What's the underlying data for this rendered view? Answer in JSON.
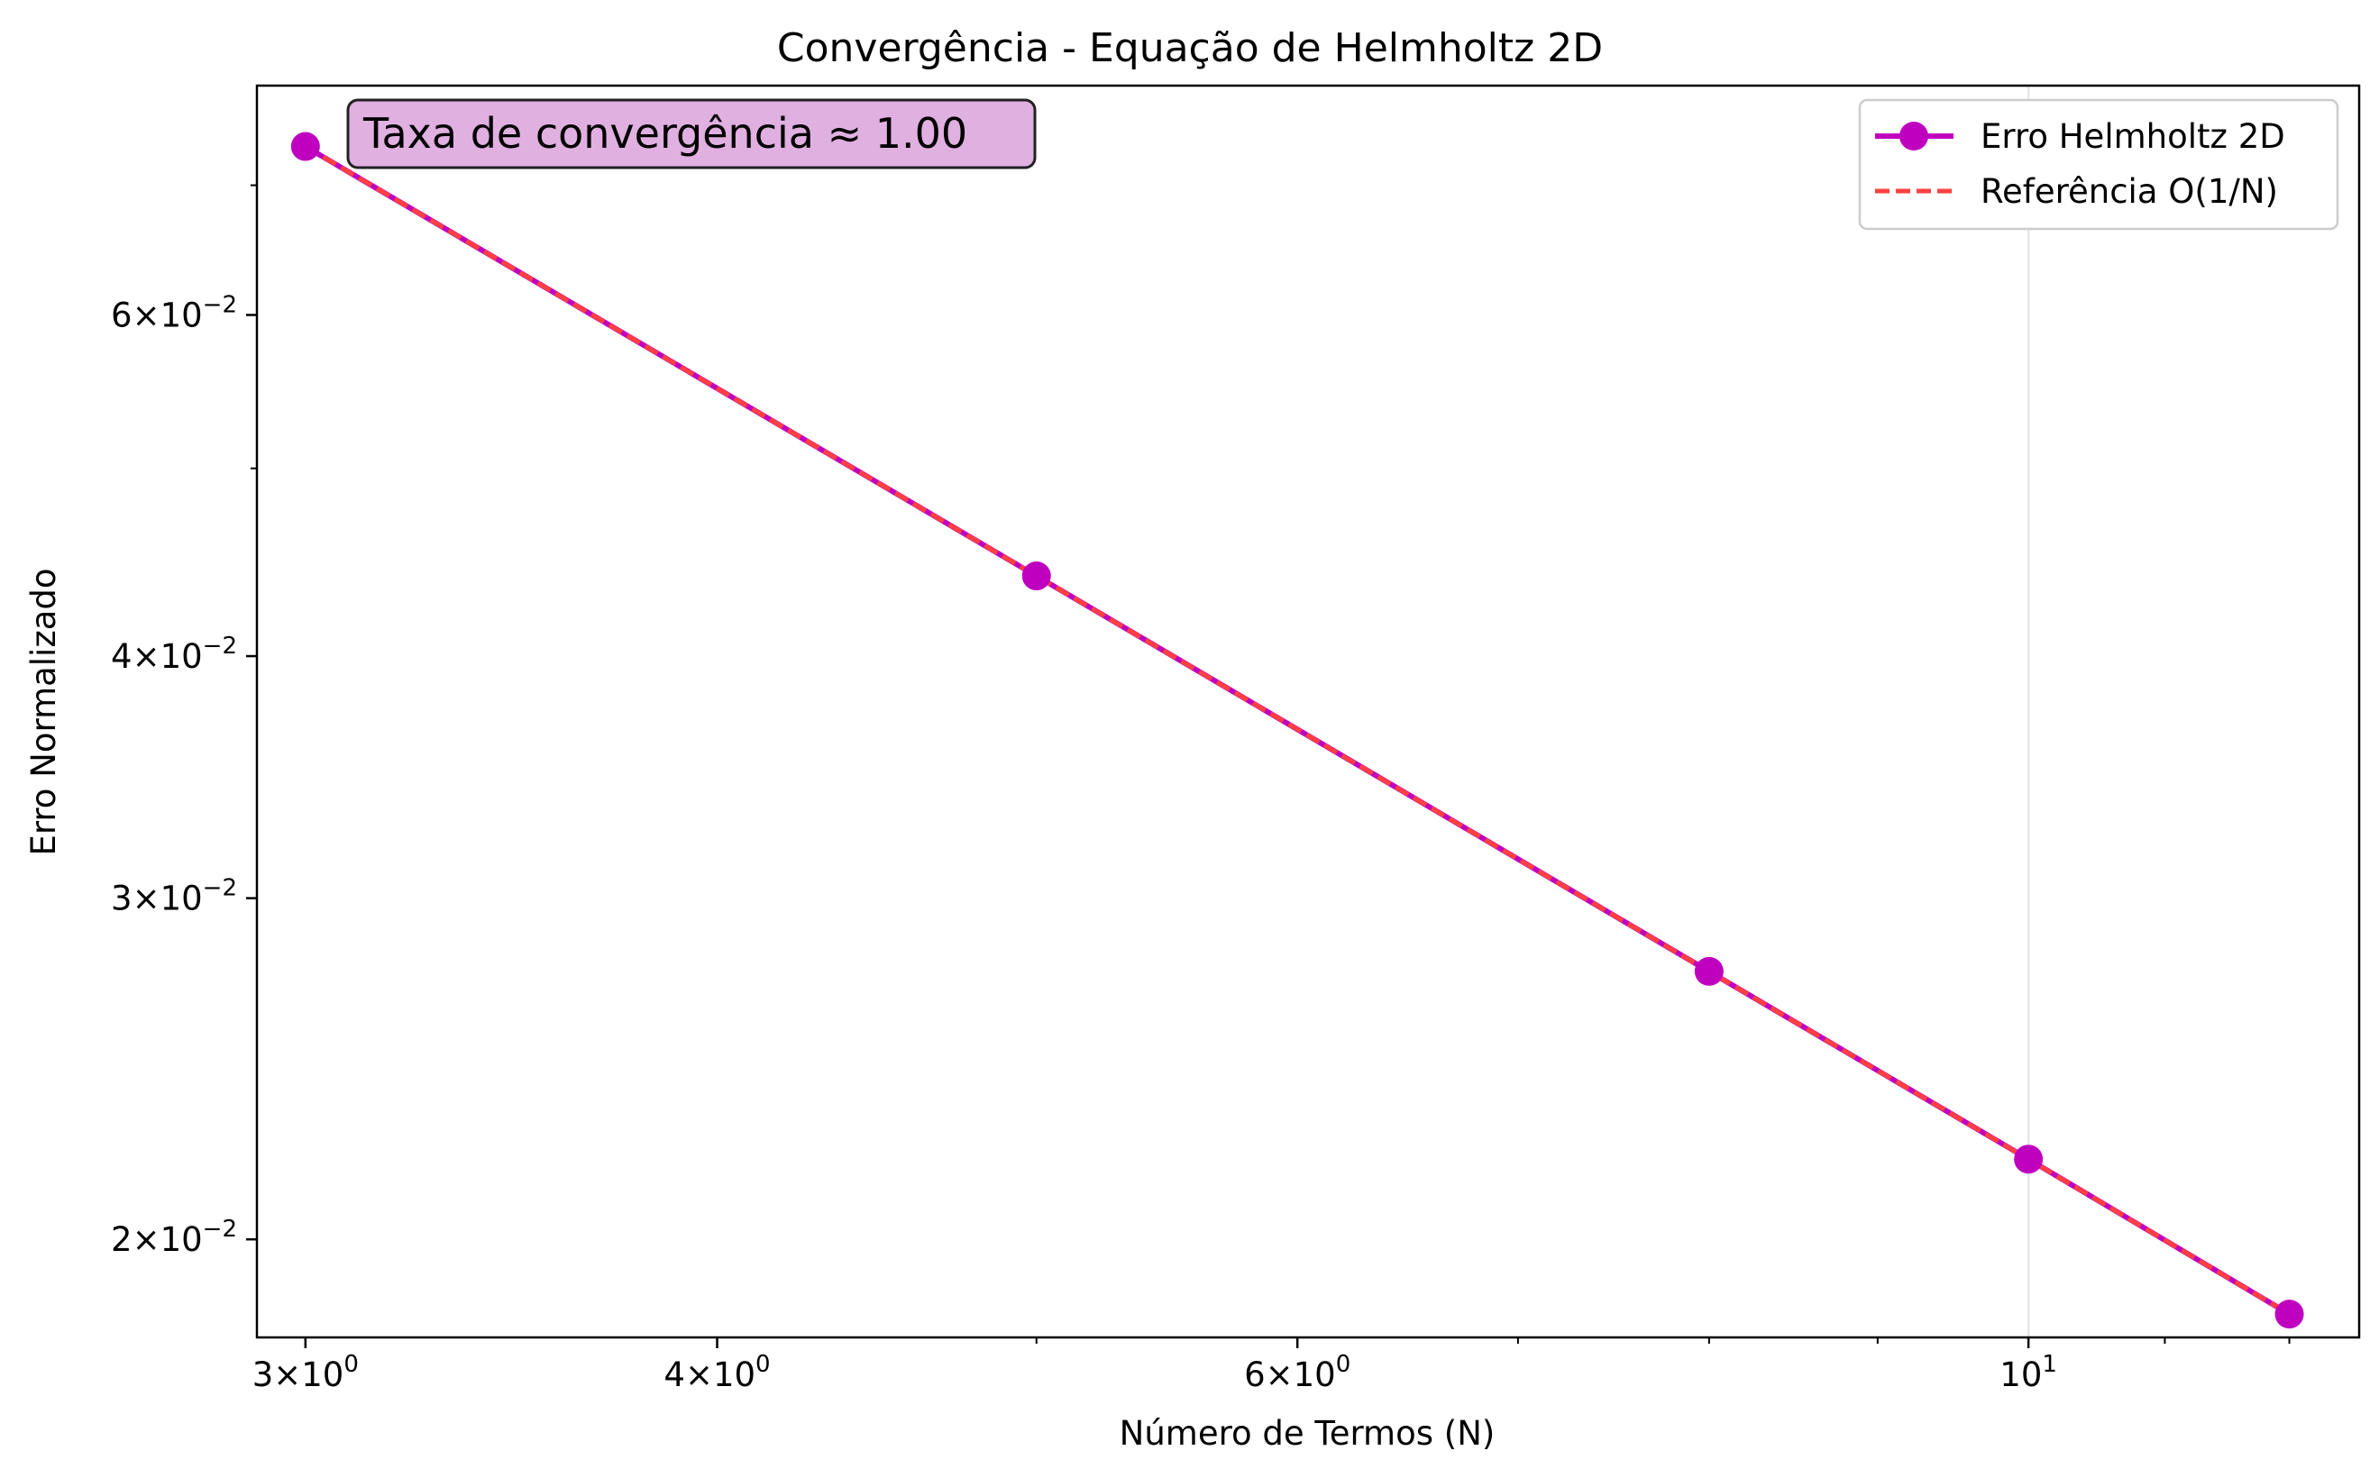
{
  "chart_data": {
    "type": "line",
    "title": "Convergência - Equação de Helmholtz 2D",
    "xlabel": "Número de Termos (N)",
    "ylabel": "Erro Normalizado",
    "x_scale": "log",
    "y_scale": "log",
    "xlim": [
      2.9,
      12.6
    ],
    "ylim": [
      0.0178,
      0.0788
    ],
    "grid": "vertical line at x = 10",
    "legend_position": "top-right",
    "x": [
      3,
      5,
      8,
      10,
      12
    ],
    "series": [
      {
        "name": "Erro Helmholtz 2D",
        "style": "solid line with circle markers",
        "color": "#bf00bf",
        "values": [
          0.0733,
          0.044,
          0.0275,
          0.022,
          0.0183
        ]
      },
      {
        "name": "Referência O(1/N)",
        "style": "dashed line",
        "color": "#ff4040",
        "values": [
          0.0733,
          0.044,
          0.0275,
          0.022,
          0.0183
        ]
      }
    ],
    "x_ticks": [
      {
        "value": 3,
        "mantissa": "3",
        "base": "10",
        "exponent": "0"
      },
      {
        "value": 4,
        "mantissa": "4",
        "base": "10",
        "exponent": "0"
      },
      {
        "value": 6,
        "mantissa": "6",
        "base": "10",
        "exponent": "0"
      },
      {
        "value": 10,
        "mantissa": "",
        "base": "10",
        "exponent": "1"
      }
    ],
    "x_minor_ticks": [
      5,
      7,
      8,
      9,
      11,
      12
    ],
    "y_ticks": [
      {
        "value": 0.02,
        "mantissa": "2",
        "base": "10",
        "exponent": "−2"
      },
      {
        "value": 0.03,
        "mantissa": "3",
        "base": "10",
        "exponent": "−2"
      },
      {
        "value": 0.04,
        "mantissa": "4",
        "base": "10",
        "exponent": "−2"
      },
      {
        "value": 0.06,
        "mantissa": "6",
        "base": "10",
        "exponent": "−2"
      }
    ],
    "y_minor_ticks": [
      0.05,
      0.07
    ],
    "annotation": {
      "text": "Taxa de convergência ≈ 1.00",
      "background": "#e0b0e0"
    }
  }
}
